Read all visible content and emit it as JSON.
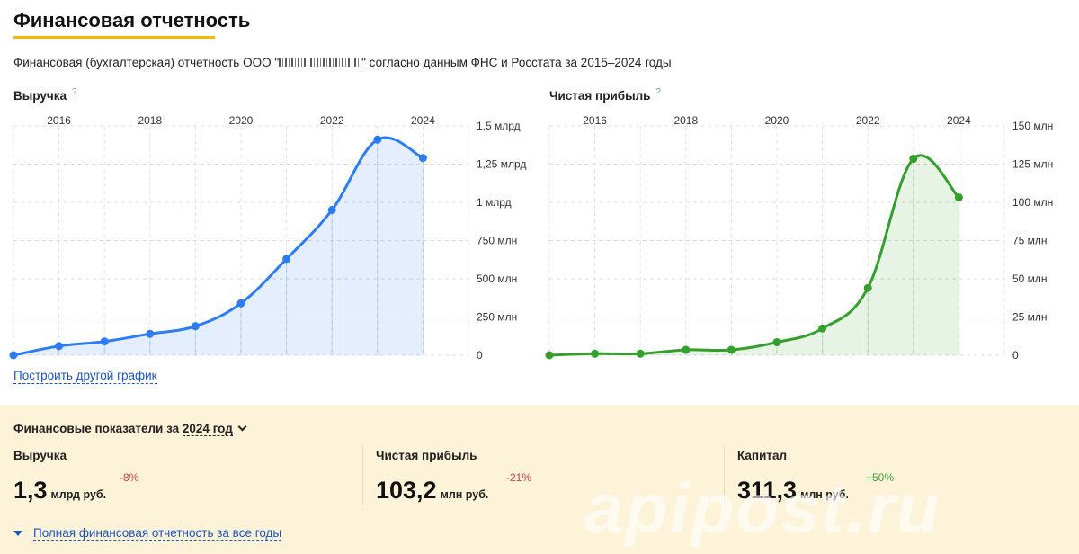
{
  "header": {
    "title": "Финансовая отчетность",
    "subtitle_prefix": "Финансовая (бухгалтерская) отчетность ООО \"",
    "subtitle_suffix": "\" согласно данным ФНС и Росстата за 2015–2024 годы"
  },
  "charts": {
    "revenue": {
      "label": "Выручка",
      "help": "?"
    },
    "profit": {
      "label": "Чистая прибыль",
      "help": "?"
    }
  },
  "links": {
    "build_chart": "Построить другой график",
    "full_report": "Полная финансовая отчетность за все годы"
  },
  "summary": {
    "period_label": "Финансовые показатели за",
    "period_year": "2024 год",
    "metrics": [
      {
        "label": "Выручка",
        "value": "1,3",
        "unit": "млрд руб.",
        "delta": "-8%",
        "trend": "negative"
      },
      {
        "label": "Чистая прибыль",
        "value": "103,2",
        "unit": "млн руб.",
        "delta": "-21%",
        "trend": "negative"
      },
      {
        "label": "Капитал",
        "value": "311,3",
        "unit": "млн руб.",
        "delta": "+50%",
        "trend": "positive"
      }
    ]
  },
  "watermark": "apipost.ru",
  "colors": {
    "revenue_line": "#2b7cf5",
    "profit_line": "#33a02c",
    "accent": "#f5b800",
    "link": "#1a55c4"
  },
  "chart_data": [
    {
      "type": "area",
      "series": [
        {
          "name": "Выручка",
          "x": [
            2015,
            2016,
            2017,
            2018,
            2019,
            2020,
            2021,
            2022,
            2023,
            2024
          ],
          "values": [
            0.0,
            0.06,
            0.09,
            0.14,
            0.19,
            0.34,
            0.63,
            0.95,
            1.41,
            1.29
          ]
        }
      ],
      "x_ticks": [
        "2016",
        "2018",
        "2020",
        "2022",
        "2024"
      ],
      "y_ticks": [
        "0",
        "250 млн",
        "500 млн",
        "750 млн",
        "1 млрд",
        "1,25 млрд",
        "1,5 млрд"
      ],
      "y_tick_values": [
        0,
        0.25,
        0.5,
        0.75,
        1.0,
        1.25,
        1.5
      ],
      "ylim": [
        0,
        1.5
      ],
      "xlim": [
        2015,
        2025
      ],
      "grid": true
    },
    {
      "type": "area",
      "series": [
        {
          "name": "Чистая прибыль",
          "x": [
            2015,
            2016,
            2017,
            2018,
            2019,
            2020,
            2021,
            2022,
            2023,
            2024
          ],
          "values": [
            0.0,
            1.0,
            1.0,
            3.5,
            3.5,
            8.5,
            17.5,
            44.0,
            128.5,
            103.2
          ]
        }
      ],
      "x_ticks": [
        "2016",
        "2018",
        "2020",
        "2022",
        "2024"
      ],
      "y_ticks": [
        "0",
        "25 млн",
        "50 млн",
        "75 млн",
        "100 млн",
        "125 млн",
        "150 млн"
      ],
      "y_tick_values": [
        0,
        25,
        50,
        75,
        100,
        125,
        150
      ],
      "ylim": [
        0,
        150
      ],
      "xlim": [
        2015,
        2025
      ],
      "grid": true
    }
  ]
}
